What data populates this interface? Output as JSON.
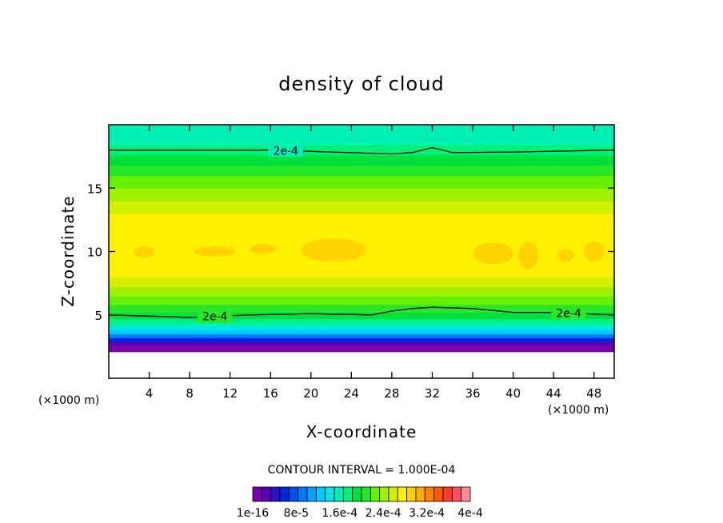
{
  "chart_data": {
    "type": "heatmap",
    "title": "density of cloud",
    "xlabel": "X-coordinate",
    "ylabel": "Z-coordinate",
    "x_unit": "(×1000 m)",
    "y_unit": "(×1000 m)",
    "xlim": [
      0,
      50
    ],
    "ylim": [
      0,
      20
    ],
    "x_ticks": [
      4,
      8,
      12,
      16,
      20,
      24,
      28,
      32,
      36,
      40,
      44,
      48
    ],
    "y_ticks": [
      5,
      10,
      15
    ],
    "contour_interval_text": "CONTOUR INTERVAL = 1.000E-04",
    "contour_labels": [
      "2e-4",
      "2e-4",
      "2e-4"
    ],
    "contour_lines": [
      {
        "label": "2e-4",
        "label_x": 17.5,
        "points": [
          [
            0,
            18.0
          ],
          [
            8,
            18.0
          ],
          [
            16,
            18.0
          ],
          [
            22,
            17.85
          ],
          [
            28,
            17.7
          ],
          [
            30,
            17.8
          ],
          [
            32,
            18.2
          ],
          [
            34,
            17.8
          ],
          [
            40,
            17.85
          ],
          [
            50,
            18.0
          ]
        ]
      },
      {
        "label": "2e-4",
        "label_x": 10.5,
        "points": [
          [
            0,
            5.0
          ],
          [
            4,
            4.9
          ],
          [
            8,
            4.8
          ],
          [
            14,
            5.0
          ],
          [
            20,
            5.1
          ],
          [
            26,
            5.0
          ],
          [
            28,
            5.3
          ],
          [
            30,
            5.5
          ],
          [
            32,
            5.6
          ],
          [
            36,
            5.5
          ],
          [
            40,
            5.2
          ],
          [
            44,
            5.2
          ],
          [
            50,
            5.0
          ]
        ]
      },
      {
        "label": "2e-4",
        "label_x": 45.5,
        "points": []
      }
    ],
    "colorbar": {
      "tick_labels": [
        "1e-16",
        "8e-5",
        "1.6e-4",
        "2.4e-4",
        "3.2e-4",
        "4e-4"
      ],
      "colors": [
        "#7a00aa",
        "#5a00b4",
        "#2a10c8",
        "#0028dc",
        "#0050f0",
        "#0078ff",
        "#00a0ff",
        "#00c8ff",
        "#00e6e6",
        "#00f0b4",
        "#00f078",
        "#00e03c",
        "#28e628",
        "#64f000",
        "#a0f000",
        "#d2f000",
        "#fff000",
        "#ffd200",
        "#ffaa00",
        "#ff8200",
        "#ff5a00",
        "#ff3c28",
        "#ff5060",
        "#ff8c96"
      ]
    },
    "vertical_profile": [
      {
        "z": 0.0,
        "level": null
      },
      {
        "z": 1.9,
        "level": null
      },
      {
        "z": 2.1,
        "level": 0
      },
      {
        "z": 2.6,
        "level": 1
      },
      {
        "z": 2.9,
        "level": 3
      },
      {
        "z": 3.2,
        "level": 5
      },
      {
        "z": 3.5,
        "level": 7
      },
      {
        "z": 3.8,
        "level": 8
      },
      {
        "z": 4.1,
        "level": 9
      },
      {
        "z": 4.4,
        "level": 10
      },
      {
        "z": 4.7,
        "level": 11
      },
      {
        "z": 5.2,
        "level": 12
      },
      {
        "z": 5.8,
        "level": 13
      },
      {
        "z": 6.5,
        "level": 14
      },
      {
        "z": 7.2,
        "level": 15
      },
      {
        "z": 8.0,
        "level": 16
      },
      {
        "z": 12.0,
        "level": 16
      },
      {
        "z": 13.0,
        "level": 15
      },
      {
        "z": 14.0,
        "level": 14
      },
      {
        "z": 15.0,
        "level": 13
      },
      {
        "z": 16.0,
        "level": 12
      },
      {
        "z": 16.8,
        "level": 11
      },
      {
        "z": 17.6,
        "level": 10
      },
      {
        "z": 18.4,
        "level": 9
      },
      {
        "z": 20.0,
        "level": 9
      }
    ],
    "patches": [
      {
        "level": 17,
        "x": [
          2.5,
          4.5
        ],
        "z": [
          9.5,
          10.4
        ]
      },
      {
        "level": 17,
        "x": [
          8.5,
          12.5
        ],
        "z": [
          9.6,
          10.4
        ]
      },
      {
        "level": 17,
        "x": [
          14.0,
          16.5
        ],
        "z": [
          9.8,
          10.6
        ]
      },
      {
        "level": 17,
        "x": [
          19.0,
          25.5
        ],
        "z": [
          9.2,
          11.0
        ]
      },
      {
        "level": 17,
        "x": [
          36.0,
          40.0
        ],
        "z": [
          9.0,
          10.7
        ]
      },
      {
        "level": 17,
        "x": [
          40.5,
          42.5
        ],
        "z": [
          8.6,
          10.8
        ]
      },
      {
        "level": 17,
        "x": [
          44.5,
          46.0
        ],
        "z": [
          9.2,
          10.2
        ]
      },
      {
        "level": 17,
        "x": [
          47.0,
          49.0
        ],
        "z": [
          9.2,
          10.8
        ]
      }
    ],
    "grid": false,
    "legend_placement": "bottom"
  }
}
